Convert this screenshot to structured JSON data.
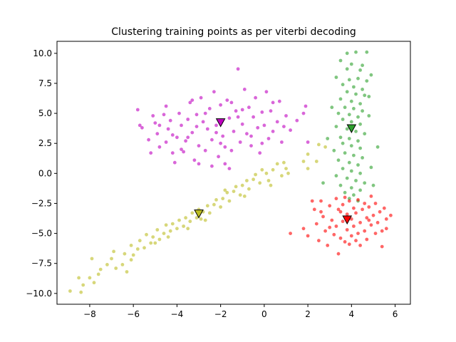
{
  "chart_data": {
    "type": "scatter",
    "title": "Clustering training points as per viterbi decoding",
    "xlabel": "",
    "ylabel": "",
    "xlim": [
      -9.5,
      6.7
    ],
    "ylim": [
      -10.9,
      11.0
    ],
    "grid": false,
    "x_ticks": [
      -8,
      -6,
      -4,
      -2,
      0,
      2,
      4,
      6
    ],
    "y_ticks": [
      -10.0,
      -7.5,
      -5.0,
      -2.5,
      0.0,
      2.5,
      5.0,
      7.5,
      10.0
    ],
    "x_tick_labels": [
      "−8",
      "−6",
      "−4",
      "−2",
      "0",
      "2",
      "4",
      "6"
    ],
    "y_tick_labels": [
      "−10.0",
      "−7.5",
      "−5.0",
      "−2.5",
      "0.0",
      "2.5",
      "5.0",
      "7.5",
      "10.0"
    ],
    "series": [
      {
        "color": "#bf00bf",
        "marker": "circle",
        "centroid": [
          -2.0,
          4.2
        ],
        "points": [
          [
            -5.8,
            5.3
          ],
          [
            -5.7,
            4.0
          ],
          [
            -5.6,
            3.8
          ],
          [
            -5.3,
            2.8
          ],
          [
            -5.2,
            1.7
          ],
          [
            -5.1,
            4.8
          ],
          [
            -5.0,
            4.2
          ],
          [
            -4.9,
            3.3
          ],
          [
            -4.8,
            2.2
          ],
          [
            -4.6,
            4.9
          ],
          [
            -4.5,
            5.6
          ],
          [
            -4.5,
            2.6
          ],
          [
            -4.4,
            3.7
          ],
          [
            -4.3,
            4.4
          ],
          [
            -4.2,
            1.7
          ],
          [
            -4.1,
            0.9
          ],
          [
            -4.0,
            3.0
          ],
          [
            -3.9,
            5.0
          ],
          [
            -3.8,
            4.0
          ],
          [
            -3.7,
            1.8
          ],
          [
            -3.6,
            2.7
          ],
          [
            -3.5,
            4.5
          ],
          [
            -3.4,
            5.9
          ],
          [
            -3.3,
            3.4
          ],
          [
            -3.2,
            1.1
          ],
          [
            -3.1,
            4.9
          ],
          [
            -3.0,
            2.3
          ],
          [
            -2.9,
            6.3
          ],
          [
            -2.8,
            4.3
          ],
          [
            -2.7,
            1.9
          ],
          [
            -2.6,
            3.7
          ],
          [
            -2.5,
            5.4
          ],
          [
            -2.4,
            2.8
          ],
          [
            -2.3,
            6.8
          ],
          [
            -2.2,
            4.0
          ],
          [
            -2.1,
            1.4
          ],
          [
            -2.0,
            5.7
          ],
          [
            -1.9,
            3.1
          ],
          [
            -1.8,
            2.2
          ],
          [
            -1.7,
            6.1
          ],
          [
            -1.6,
            4.6
          ],
          [
            -1.5,
            1.9
          ],
          [
            -1.4,
            3.5
          ],
          [
            -1.3,
            5.2
          ],
          [
            -1.2,
            8.7
          ],
          [
            -1.1,
            2.6
          ],
          [
            -1.0,
            4.1
          ],
          [
            -0.9,
            7.0
          ],
          [
            -0.8,
            3.3
          ],
          [
            -0.7,
            5.5
          ],
          [
            -0.6,
            2.3
          ],
          [
            -0.5,
            4.7
          ],
          [
            -0.4,
            6.3
          ],
          [
            -0.3,
            3.8
          ],
          [
            -0.2,
            1.7
          ],
          [
            -0.1,
            5.1
          ],
          [
            0.0,
            4.0
          ],
          [
            0.1,
            6.8
          ],
          [
            0.2,
            2.9
          ],
          [
            0.3,
            5.2
          ],
          [
            0.4,
            3.5
          ],
          [
            0.6,
            4.3
          ],
          [
            0.7,
            6.0
          ],
          [
            0.8,
            2.6
          ],
          [
            1.0,
            4.8
          ],
          [
            1.2,
            3.6
          ],
          [
            1.5,
            4.4
          ],
          [
            1.8,
            5.0
          ],
          [
            2.0,
            2.6
          ],
          [
            -2.4,
            0.6
          ],
          [
            -3.0,
            0.8
          ],
          [
            -1.6,
            0.4
          ],
          [
            -4.8,
            4.0
          ],
          [
            -3.5,
            3.0
          ],
          [
            -2.7,
            5.0
          ],
          [
            -1.5,
            5.9
          ],
          [
            -0.6,
            3.1
          ],
          [
            -2.0,
            2.5
          ],
          [
            -1.2,
            4.7
          ],
          [
            -3.8,
            2.0
          ],
          [
            1.9,
            5.6
          ],
          [
            -1.8,
            0.8
          ],
          [
            -3.3,
            6.1
          ],
          [
            -0.1,
            2.5
          ],
          [
            0.4,
            5.9
          ],
          [
            -4.2,
            3.2
          ],
          [
            -2.2,
            3.4
          ],
          [
            -1.0,
            5.3
          ],
          [
            0.9,
            3.9
          ],
          [
            -3.1,
            3.9
          ]
        ]
      },
      {
        "color": "#2ca02c",
        "marker": "circle",
        "centroid": [
          4.0,
          3.7
        ],
        "points": [
          [
            3.8,
            10.0
          ],
          [
            4.2,
            10.1
          ],
          [
            4.7,
            10.1
          ],
          [
            3.5,
            9.4
          ],
          [
            4.0,
            9.1
          ],
          [
            4.5,
            9.0
          ],
          [
            3.8,
            8.7
          ],
          [
            4.4,
            8.6
          ],
          [
            4.9,
            8.2
          ],
          [
            3.3,
            8.0
          ],
          [
            3.9,
            7.8
          ],
          [
            4.3,
            7.9
          ],
          [
            4.7,
            7.7
          ],
          [
            3.6,
            7.4
          ],
          [
            4.1,
            7.2
          ],
          [
            4.5,
            7.0
          ],
          [
            3.8,
            6.8
          ],
          [
            4.2,
            6.6
          ],
          [
            4.6,
            6.5
          ],
          [
            3.5,
            6.2
          ],
          [
            4.0,
            6.0
          ],
          [
            4.4,
            5.8
          ],
          [
            3.7,
            5.5
          ],
          [
            4.1,
            5.4
          ],
          [
            4.5,
            5.2
          ],
          [
            3.4,
            5.0
          ],
          [
            3.9,
            4.9
          ],
          [
            4.3,
            4.7
          ],
          [
            3.6,
            4.5
          ],
          [
            4.0,
            4.3
          ],
          [
            4.4,
            4.1
          ],
          [
            3.3,
            3.9
          ],
          [
            3.8,
            3.7
          ],
          [
            4.2,
            3.5
          ],
          [
            4.6,
            3.3
          ],
          [
            3.5,
            3.0
          ],
          [
            3.9,
            2.9
          ],
          [
            4.3,
            2.7
          ],
          [
            3.6,
            2.5
          ],
          [
            4.0,
            2.3
          ],
          [
            4.4,
            2.1
          ],
          [
            3.2,
            1.9
          ],
          [
            3.7,
            1.7
          ],
          [
            4.1,
            1.5
          ],
          [
            4.5,
            1.3
          ],
          [
            3.4,
            1.1
          ],
          [
            3.9,
            0.9
          ],
          [
            4.3,
            0.7
          ],
          [
            3.6,
            0.4
          ],
          [
            4.0,
            0.2
          ],
          [
            4.4,
            0.0
          ],
          [
            3.3,
            -0.2
          ],
          [
            3.8,
            -0.4
          ],
          [
            4.2,
            -0.6
          ],
          [
            4.6,
            -0.8
          ],
          [
            3.5,
            -1.0
          ],
          [
            4.0,
            -1.2
          ],
          [
            4.4,
            -1.4
          ],
          [
            3.7,
            -1.6
          ],
          [
            4.1,
            -1.8
          ],
          [
            3.9,
            -2.1
          ],
          [
            4.3,
            -2.3
          ],
          [
            2.7,
            -0.8
          ],
          [
            5.0,
            -1.0
          ],
          [
            4.8,
            4.8
          ],
          [
            5.2,
            2.2
          ],
          [
            2.9,
            2.9
          ],
          [
            4.8,
            6.4
          ],
          [
            3.1,
            5.5
          ],
          [
            4.9,
            0.5
          ]
        ]
      },
      {
        "color": "#ff0000",
        "marker": "circle",
        "centroid": [
          3.8,
          -3.9
        ],
        "points": [
          [
            1.2,
            -5.0
          ],
          [
            1.8,
            -4.6
          ],
          [
            2.0,
            -5.2
          ],
          [
            2.3,
            -3.0
          ],
          [
            2.4,
            -4.2
          ],
          [
            2.5,
            -5.6
          ],
          [
            2.6,
            -2.3
          ],
          [
            2.7,
            -3.6
          ],
          [
            2.8,
            -4.8
          ],
          [
            2.9,
            -6.0
          ],
          [
            3.0,
            -2.7
          ],
          [
            3.1,
            -3.9
          ],
          [
            3.2,
            -5.1
          ],
          [
            3.3,
            -2.1
          ],
          [
            3.3,
            -4.4
          ],
          [
            3.4,
            -6.7
          ],
          [
            3.5,
            -3.2
          ],
          [
            3.5,
            -5.4
          ],
          [
            3.6,
            -2.6
          ],
          [
            3.6,
            -4.0
          ],
          [
            3.7,
            -5.7
          ],
          [
            3.8,
            -3.4
          ],
          [
            3.8,
            -4.7
          ],
          [
            3.9,
            -2.3
          ],
          [
            3.9,
            -5.9
          ],
          [
            4.0,
            -3.8
          ],
          [
            4.0,
            -5.2
          ],
          [
            4.1,
            -2.9
          ],
          [
            4.1,
            -4.4
          ],
          [
            4.2,
            -3.3
          ],
          [
            4.3,
            -5.0
          ],
          [
            4.3,
            -2.2
          ],
          [
            4.4,
            -4.1
          ],
          [
            4.4,
            -6.0
          ],
          [
            4.5,
            -3.0
          ],
          [
            4.6,
            -4.8
          ],
          [
            4.6,
            -2.5
          ],
          [
            4.7,
            -3.7
          ],
          [
            4.7,
            -5.5
          ],
          [
            4.8,
            -2.8
          ],
          [
            4.9,
            -4.3
          ],
          [
            4.9,
            -1.9
          ],
          [
            5.0,
            -3.5
          ],
          [
            5.1,
            -5.0
          ],
          [
            5.1,
            -2.5
          ],
          [
            5.2,
            -4.1
          ],
          [
            5.3,
            -3.2
          ],
          [
            5.4,
            -4.8
          ],
          [
            5.5,
            -2.9
          ],
          [
            5.6,
            -3.8
          ],
          [
            5.8,
            -3.5
          ],
          [
            5.4,
            -6.1
          ],
          [
            2.2,
            -2.3
          ],
          [
            3.0,
            -4.5
          ],
          [
            3.7,
            -2.0
          ],
          [
            4.2,
            -5.6
          ],
          [
            4.8,
            -3.9
          ],
          [
            5.6,
            -4.6
          ],
          [
            2.6,
            -3.2
          ],
          [
            3.4,
            -3.0
          ]
        ]
      },
      {
        "color": "#bcbd22",
        "marker": "circle",
        "centroid": [
          -3.0,
          -3.4
        ],
        "points": [
          [
            -8.9,
            -9.8
          ],
          [
            -8.5,
            -8.7
          ],
          [
            -8.3,
            -9.3
          ],
          [
            -8.0,
            -8.7
          ],
          [
            -7.9,
            -7.1
          ],
          [
            -7.8,
            -9.1
          ],
          [
            -7.6,
            -8.4
          ],
          [
            -7.5,
            -8.0
          ],
          [
            -7.2,
            -7.6
          ],
          [
            -6.9,
            -6.5
          ],
          [
            -6.8,
            -7.9
          ],
          [
            -6.5,
            -7.6
          ],
          [
            -6.4,
            -6.7
          ],
          [
            -6.3,
            -8.2
          ],
          [
            -6.1,
            -6.0
          ],
          [
            -6.0,
            -6.8
          ],
          [
            -5.8,
            -6.3
          ],
          [
            -5.7,
            -5.6
          ],
          [
            -5.5,
            -6.2
          ],
          [
            -5.4,
            -5.1
          ],
          [
            -5.2,
            -5.8
          ],
          [
            -5.1,
            -5.3
          ],
          [
            -4.9,
            -4.7
          ],
          [
            -4.8,
            -5.5
          ],
          [
            -4.6,
            -5.0
          ],
          [
            -4.5,
            -4.3
          ],
          [
            -4.3,
            -4.8
          ],
          [
            -4.2,
            -4.2
          ],
          [
            -4.0,
            -4.6
          ],
          [
            -3.9,
            -3.9
          ],
          [
            -3.7,
            -4.4
          ],
          [
            -3.6,
            -3.7
          ],
          [
            -3.4,
            -4.0
          ],
          [
            -3.3,
            -3.3
          ],
          [
            -3.1,
            -3.7
          ],
          [
            -3.0,
            -3.0
          ],
          [
            -2.9,
            -3.8
          ],
          [
            -2.8,
            -3.2
          ],
          [
            -2.6,
            -2.7
          ],
          [
            -2.5,
            -3.3
          ],
          [
            -2.3,
            -2.6
          ],
          [
            -2.2,
            -2.2
          ],
          [
            -2.0,
            -2.8
          ],
          [
            -1.9,
            -2.1
          ],
          [
            -1.7,
            -1.6
          ],
          [
            -1.6,
            -2.3
          ],
          [
            -1.4,
            -1.5
          ],
          [
            -1.3,
            -1.1
          ],
          [
            -1.1,
            -1.8
          ],
          [
            -1.0,
            -1.0
          ],
          [
            -0.8,
            -0.6
          ],
          [
            -0.7,
            -1.3
          ],
          [
            -0.5,
            -0.5
          ],
          [
            -0.4,
            -0.1
          ],
          [
            -0.2,
            -0.8
          ],
          [
            -0.1,
            0.3
          ],
          [
            0.1,
            0.0
          ],
          [
            0.2,
            -0.6
          ],
          [
            0.4,
            0.3
          ],
          [
            0.6,
            0.8
          ],
          [
            0.8,
            -0.2
          ],
          [
            1.0,
            0.4
          ],
          [
            1.1,
            0.0
          ],
          [
            1.8,
            1.0
          ],
          [
            2.0,
            1.6
          ],
          [
            2.4,
            1.0
          ],
          [
            2.5,
            2.4
          ],
          [
            2.0,
            0.4
          ],
          [
            -8.4,
            -9.9
          ],
          [
            -7.0,
            -7.1
          ],
          [
            -6.1,
            -7.2
          ],
          [
            -5.0,
            -5.8
          ],
          [
            -4.4,
            -5.3
          ],
          [
            -3.5,
            -4.6
          ],
          [
            -2.7,
            -3.9
          ],
          [
            -1.8,
            -1.4
          ],
          [
            -0.9,
            -1.9
          ],
          [
            0.3,
            -1.0
          ],
          [
            0.9,
            0.9
          ],
          [
            2.8,
            2.2
          ]
        ]
      }
    ]
  }
}
